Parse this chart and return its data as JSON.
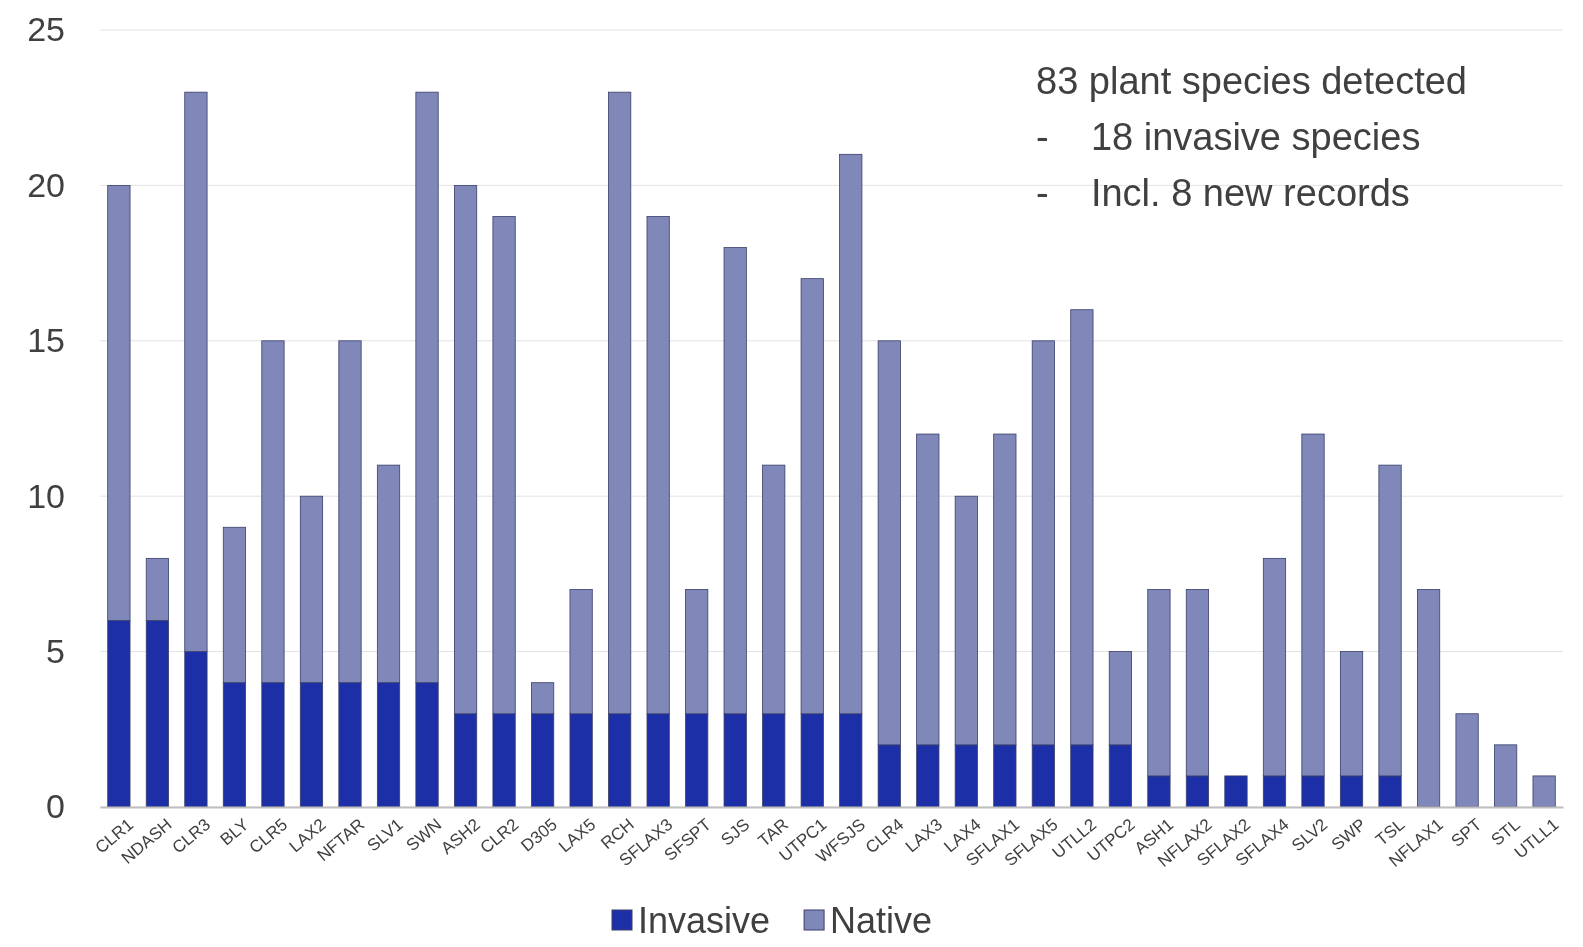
{
  "chart_data": {
    "type": "bar",
    "stacked": true,
    "categories": [
      "CLR1",
      "NDASH",
      "CLR3",
      "BLY",
      "CLR5",
      "LAX2",
      "NFTAR",
      "SLV1",
      "SWN",
      "ASH2",
      "CLR2",
      "D305",
      "LAX5",
      "RCH",
      "SFLAX3",
      "SFSPT",
      "SJS",
      "TAR",
      "UTPC1",
      "WFSJS",
      "CLR4",
      "LAX3",
      "LAX4",
      "SFLAX1",
      "SFLAX5",
      "UTLL2",
      "UTPC2",
      "ASH1",
      "NFLAX2",
      "SFLAX2",
      "SFLAX4",
      "SLV2",
      "SWP",
      "TSL",
      "NFLAX1",
      "SPT",
      "STL",
      "UTLL1"
    ],
    "series": [
      {
        "name": "Invasive",
        "color": "#1c2fa6",
        "values": [
          6,
          6,
          5,
          4,
          4,
          4,
          4,
          4,
          4,
          3,
          3,
          3,
          3,
          3,
          3,
          3,
          3,
          3,
          3,
          3,
          2,
          2,
          2,
          2,
          2,
          2,
          2,
          1,
          1,
          1,
          1,
          1,
          1,
          1,
          0,
          0,
          0,
          0
        ]
      },
      {
        "name": "Native",
        "color": "#8088ba",
        "values": [
          14,
          2,
          18,
          5,
          11,
          6,
          11,
          7,
          19,
          17,
          16,
          1,
          4,
          20,
          16,
          4,
          15,
          8,
          14,
          18,
          13,
          10,
          8,
          10,
          13,
          14,
          3,
          6,
          6,
          0,
          7,
          11,
          4,
          10,
          7,
          3,
          2,
          1
        ]
      }
    ],
    "ylim": [
      0,
      25
    ],
    "yticks": [
      0,
      5,
      10,
      15,
      20,
      25
    ],
    "grid": "y",
    "legend": "bottom",
    "annotations": [
      "83 plant species detected",
      "-    18 invasive species",
      "-    Incl. 8 new records"
    ]
  }
}
